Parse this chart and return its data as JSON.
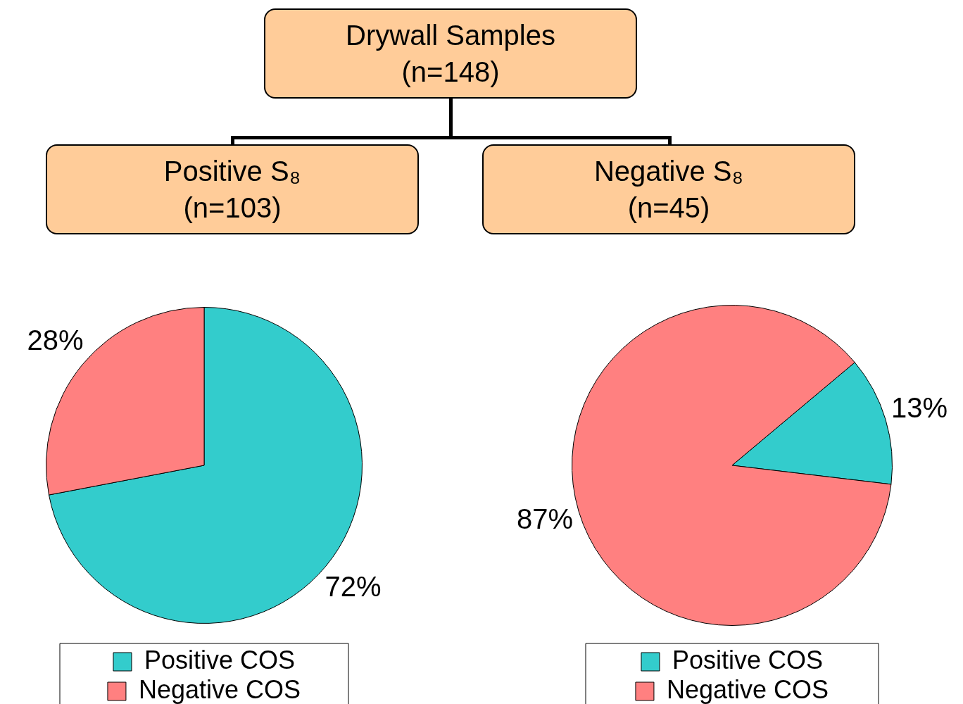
{
  "chart_data": [
    {
      "type": "other",
      "title": "Drywall Samples",
      "subtitle": "(n=148)"
    },
    {
      "type": "pie",
      "title": "Positive S₈",
      "subtitle": "(n=103)",
      "categories": [
        "Positive COS",
        "Negative COS"
      ],
      "values": [
        72,
        28
      ],
      "colors": [
        "#33cccc",
        "#ff8080"
      ],
      "value_labels": [
        "72%",
        "28%"
      ],
      "legend": "bottom"
    },
    {
      "type": "pie",
      "title": "Negative S₈",
      "subtitle": "(n=45)",
      "categories": [
        "Positive COS",
        "Negative COS"
      ],
      "values": [
        13,
        87
      ],
      "colors": [
        "#33cccc",
        "#ff8080"
      ],
      "value_labels": [
        "13%",
        "87%"
      ],
      "legend": "bottom"
    }
  ]
}
